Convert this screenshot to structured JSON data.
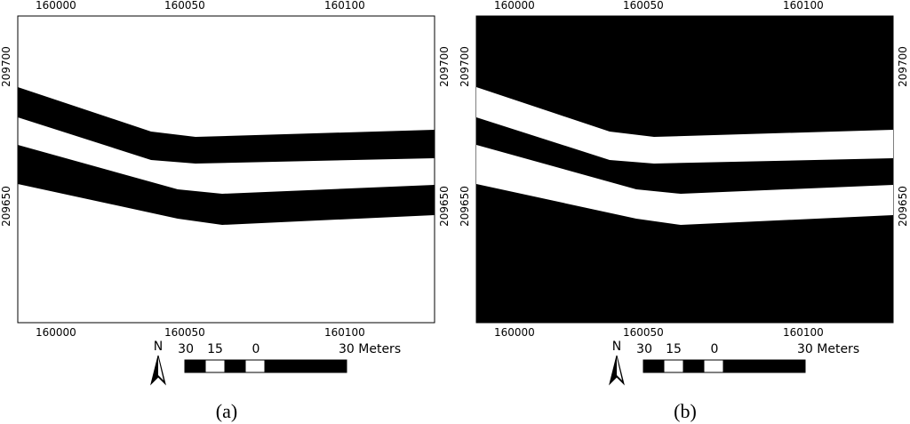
{
  "panels": [
    {
      "caption": "(a)",
      "x_labels": [
        "160000",
        "160050",
        "160100"
      ],
      "y_labels": [
        "209700",
        "209650"
      ],
      "north": "N",
      "scale_labels": [
        "30",
        "15",
        "0",
        "30 Meters"
      ]
    },
    {
      "caption": "(b)",
      "x_labels": [
        "160000",
        "160050",
        "160100"
      ],
      "y_labels": [
        "209700",
        "209650"
      ],
      "north": "N",
      "scale_labels": [
        "30",
        "15",
        "0",
        "30 Meters"
      ]
    }
  ]
}
